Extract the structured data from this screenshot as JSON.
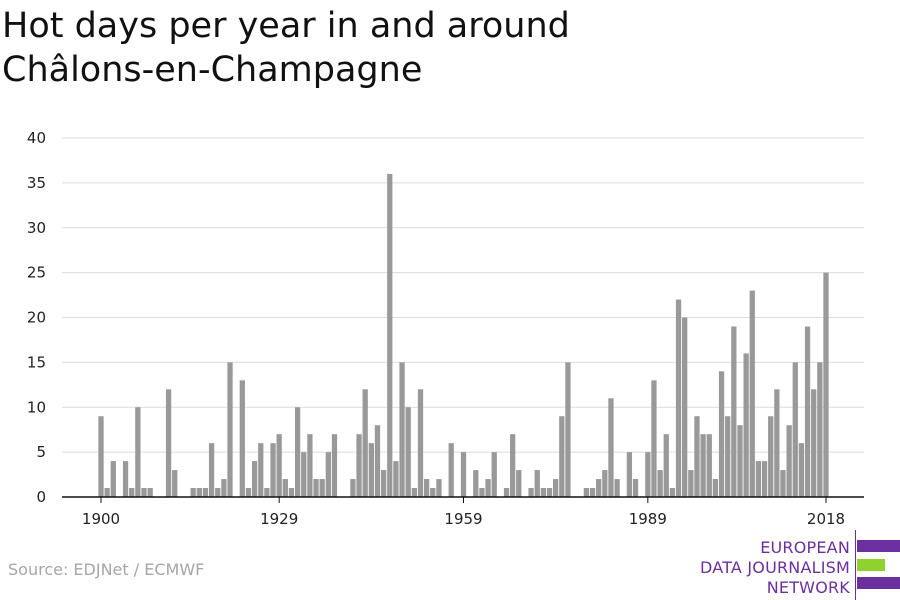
{
  "title": "Hot days per year in and around Châlons-en-Champagne",
  "source": "Source: EDJNet / ECMWF",
  "logo": {
    "lines": [
      "EUROPEAN",
      "DATA JOURNALISM",
      "NETWORK"
    ],
    "colors": [
      "#6b2fa0",
      "#8fd22e",
      "#6b2fa0"
    ]
  },
  "chart_data": {
    "type": "bar",
    "title": "Hot days per year in and around Châlons-en-Champagne",
    "xlabel": "",
    "ylabel": "",
    "x": [
      1900,
      1901,
      1902,
      1903,
      1904,
      1905,
      1906,
      1907,
      1908,
      1909,
      1910,
      1911,
      1912,
      1913,
      1914,
      1915,
      1916,
      1917,
      1918,
      1919,
      1920,
      1921,
      1922,
      1923,
      1924,
      1925,
      1926,
      1927,
      1928,
      1929,
      1930,
      1931,
      1932,
      1933,
      1934,
      1935,
      1936,
      1937,
      1938,
      1939,
      1940,
      1941,
      1942,
      1943,
      1944,
      1945,
      1946,
      1947,
      1948,
      1949,
      1950,
      1951,
      1952,
      1953,
      1954,
      1955,
      1956,
      1957,
      1958,
      1959,
      1960,
      1961,
      1962,
      1963,
      1964,
      1965,
      1966,
      1967,
      1968,
      1969,
      1970,
      1971,
      1972,
      1973,
      1974,
      1975,
      1976,
      1977,
      1978,
      1979,
      1980,
      1981,
      1982,
      1983,
      1984,
      1985,
      1986,
      1987,
      1988,
      1989,
      1990,
      1991,
      1992,
      1993,
      1994,
      1995,
      1996,
      1997,
      1998,
      1999,
      2000,
      2001,
      2002,
      2003,
      2004,
      2005,
      2006,
      2007,
      2008,
      2009,
      2010,
      2011,
      2012,
      2013,
      2014,
      2015,
      2016,
      2017,
      2018
    ],
    "values": [
      9,
      1,
      4,
      0,
      4,
      1,
      10,
      1,
      1,
      0,
      0,
      12,
      3,
      0,
      0,
      1,
      1,
      1,
      6,
      1,
      2,
      15,
      0,
      13,
      1,
      4,
      6,
      1,
      6,
      7,
      2,
      1,
      10,
      5,
      7,
      2,
      2,
      5,
      7,
      0,
      0,
      2,
      7,
      12,
      6,
      8,
      3,
      36,
      4,
      15,
      10,
      1,
      12,
      2,
      1,
      2,
      0,
      6,
      0,
      5,
      0,
      3,
      1,
      2,
      5,
      0,
      1,
      7,
      3,
      0,
      1,
      3,
      1,
      1,
      2,
      9,
      15,
      0,
      0,
      1,
      1,
      2,
      3,
      11,
      2,
      0,
      5,
      2,
      0,
      5,
      13,
      3,
      7,
      1,
      22,
      20,
      3,
      9,
      7,
      7,
      2,
      14,
      9,
      19,
      8,
      16,
      23,
      4,
      4,
      9,
      12,
      3,
      8,
      15,
      6,
      19,
      12,
      15,
      25
    ],
    "xticks": [
      "1900",
      "1929",
      "1959",
      "1989",
      "2018"
    ],
    "yticks": [
      "0",
      "5",
      "10",
      "15",
      "20",
      "25",
      "30",
      "35",
      "40"
    ],
    "ylim": [
      0,
      40
    ],
    "grid": true,
    "bar_color": "#999999"
  }
}
